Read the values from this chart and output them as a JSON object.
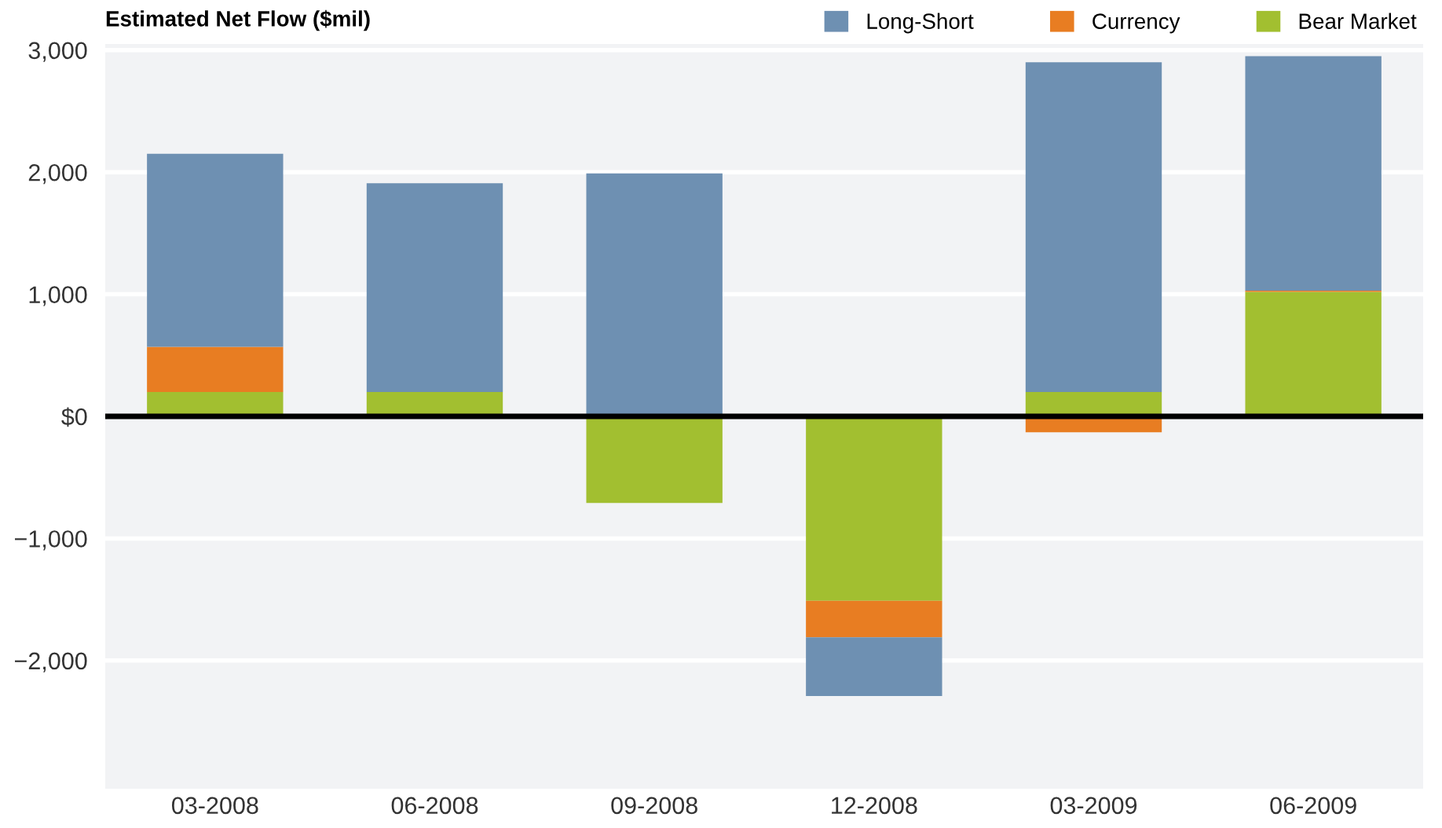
{
  "chart_data": {
    "type": "bar",
    "title": "Estimated Net Flow ($mil)",
    "stacked": true,
    "categories": [
      "03-2008",
      "06-2008",
      "09-2008",
      "12-2008",
      "03-2009",
      "06-2009"
    ],
    "series": [
      {
        "name": "Bear Market",
        "color": "#a2bf30",
        "values": [
          200,
          200,
          -710,
          -1510,
          200,
          1020
        ]
      },
      {
        "name": "Currency",
        "color": "#e87d22",
        "values": [
          370,
          -10,
          10,
          -300,
          -130,
          10
        ]
      },
      {
        "name": "Long-Short",
        "color": "#6e90b2",
        "values": [
          1580,
          1710,
          1980,
          -480,
          2700,
          1920
        ]
      }
    ],
    "ylim": [
      -3050,
      3050
    ],
    "yticks": [
      {
        "value": -2000,
        "label": "−2,000"
      },
      {
        "value": -1000,
        "label": "−1,000"
      },
      {
        "value": 0,
        "label": "$0"
      },
      {
        "value": 1000,
        "label": "1,000"
      },
      {
        "value": 2000,
        "label": "2,000"
      },
      {
        "value": 3000,
        "label": "3,000"
      }
    ],
    "grid": "y",
    "legend": "top right",
    "ref_lines": [
      {
        "axis": "y",
        "value": 0,
        "color": "#000000"
      }
    ]
  }
}
